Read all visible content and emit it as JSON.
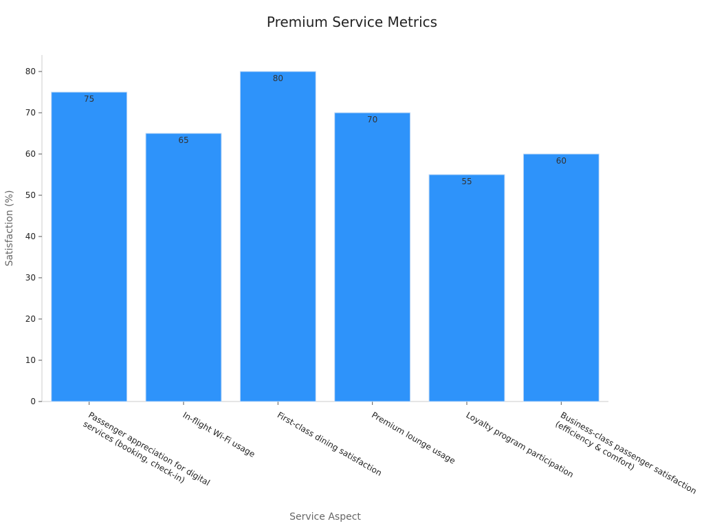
{
  "chart_data": {
    "type": "bar",
    "title": "Premium Service Metrics",
    "xlabel": "Service Aspect",
    "ylabel": "Satisfaction (%)",
    "categories": [
      [
        "Passenger appreciation for digital",
        "services (booking, check-in)"
      ],
      [
        "In-flight Wi-Fi usage"
      ],
      [
        "First-class dining satisfaction"
      ],
      [
        "Premium lounge usage"
      ],
      [
        "Loyalty program participation"
      ],
      [
        "Business-class passenger satisfaction",
        "(efficiency & comfort)"
      ]
    ],
    "values": [
      75,
      65,
      80,
      70,
      55,
      60
    ],
    "ylim": [
      0,
      84
    ],
    "yticks": [
      0,
      10,
      20,
      30,
      40,
      50,
      60,
      70,
      80
    ],
    "bar_color": "#2E93FA",
    "bar_edge_color": "#BFD8F5",
    "axis_color": "#CCCCCC",
    "grid": false,
    "show_data_labels": true
  }
}
